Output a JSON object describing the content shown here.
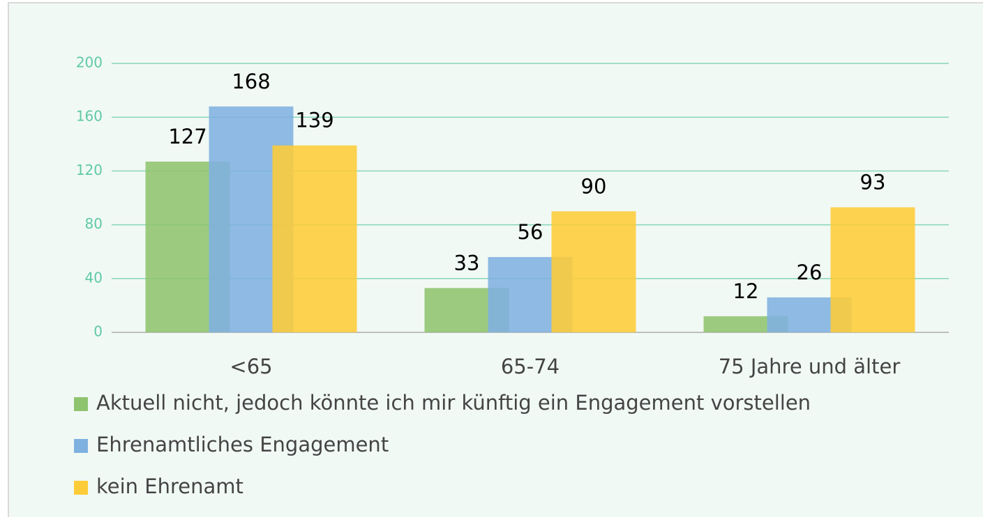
{
  "chart_data": {
    "type": "bar",
    "categories": [
      "<65",
      "65-74",
      "75 Jahre und älter"
    ],
    "series": [
      {
        "name": "Aktuell nicht, jedoch könnte ich mir künftig ein Engagement vorstellen",
        "color": "#8fc46f",
        "values": [
          127,
          33,
          12
        ]
      },
      {
        "name": "Ehrenamtliches Engagement",
        "color": "#7fb1e0",
        "values": [
          168,
          56,
          26
        ]
      },
      {
        "name": "kein Ehrenamt",
        "color": "#fdcc38",
        "values": [
          139,
          90,
          93
        ]
      }
    ],
    "ylim": [
      0,
      200
    ],
    "yticks": [
      0,
      40,
      80,
      120,
      160,
      200
    ],
    "grid": true
  }
}
